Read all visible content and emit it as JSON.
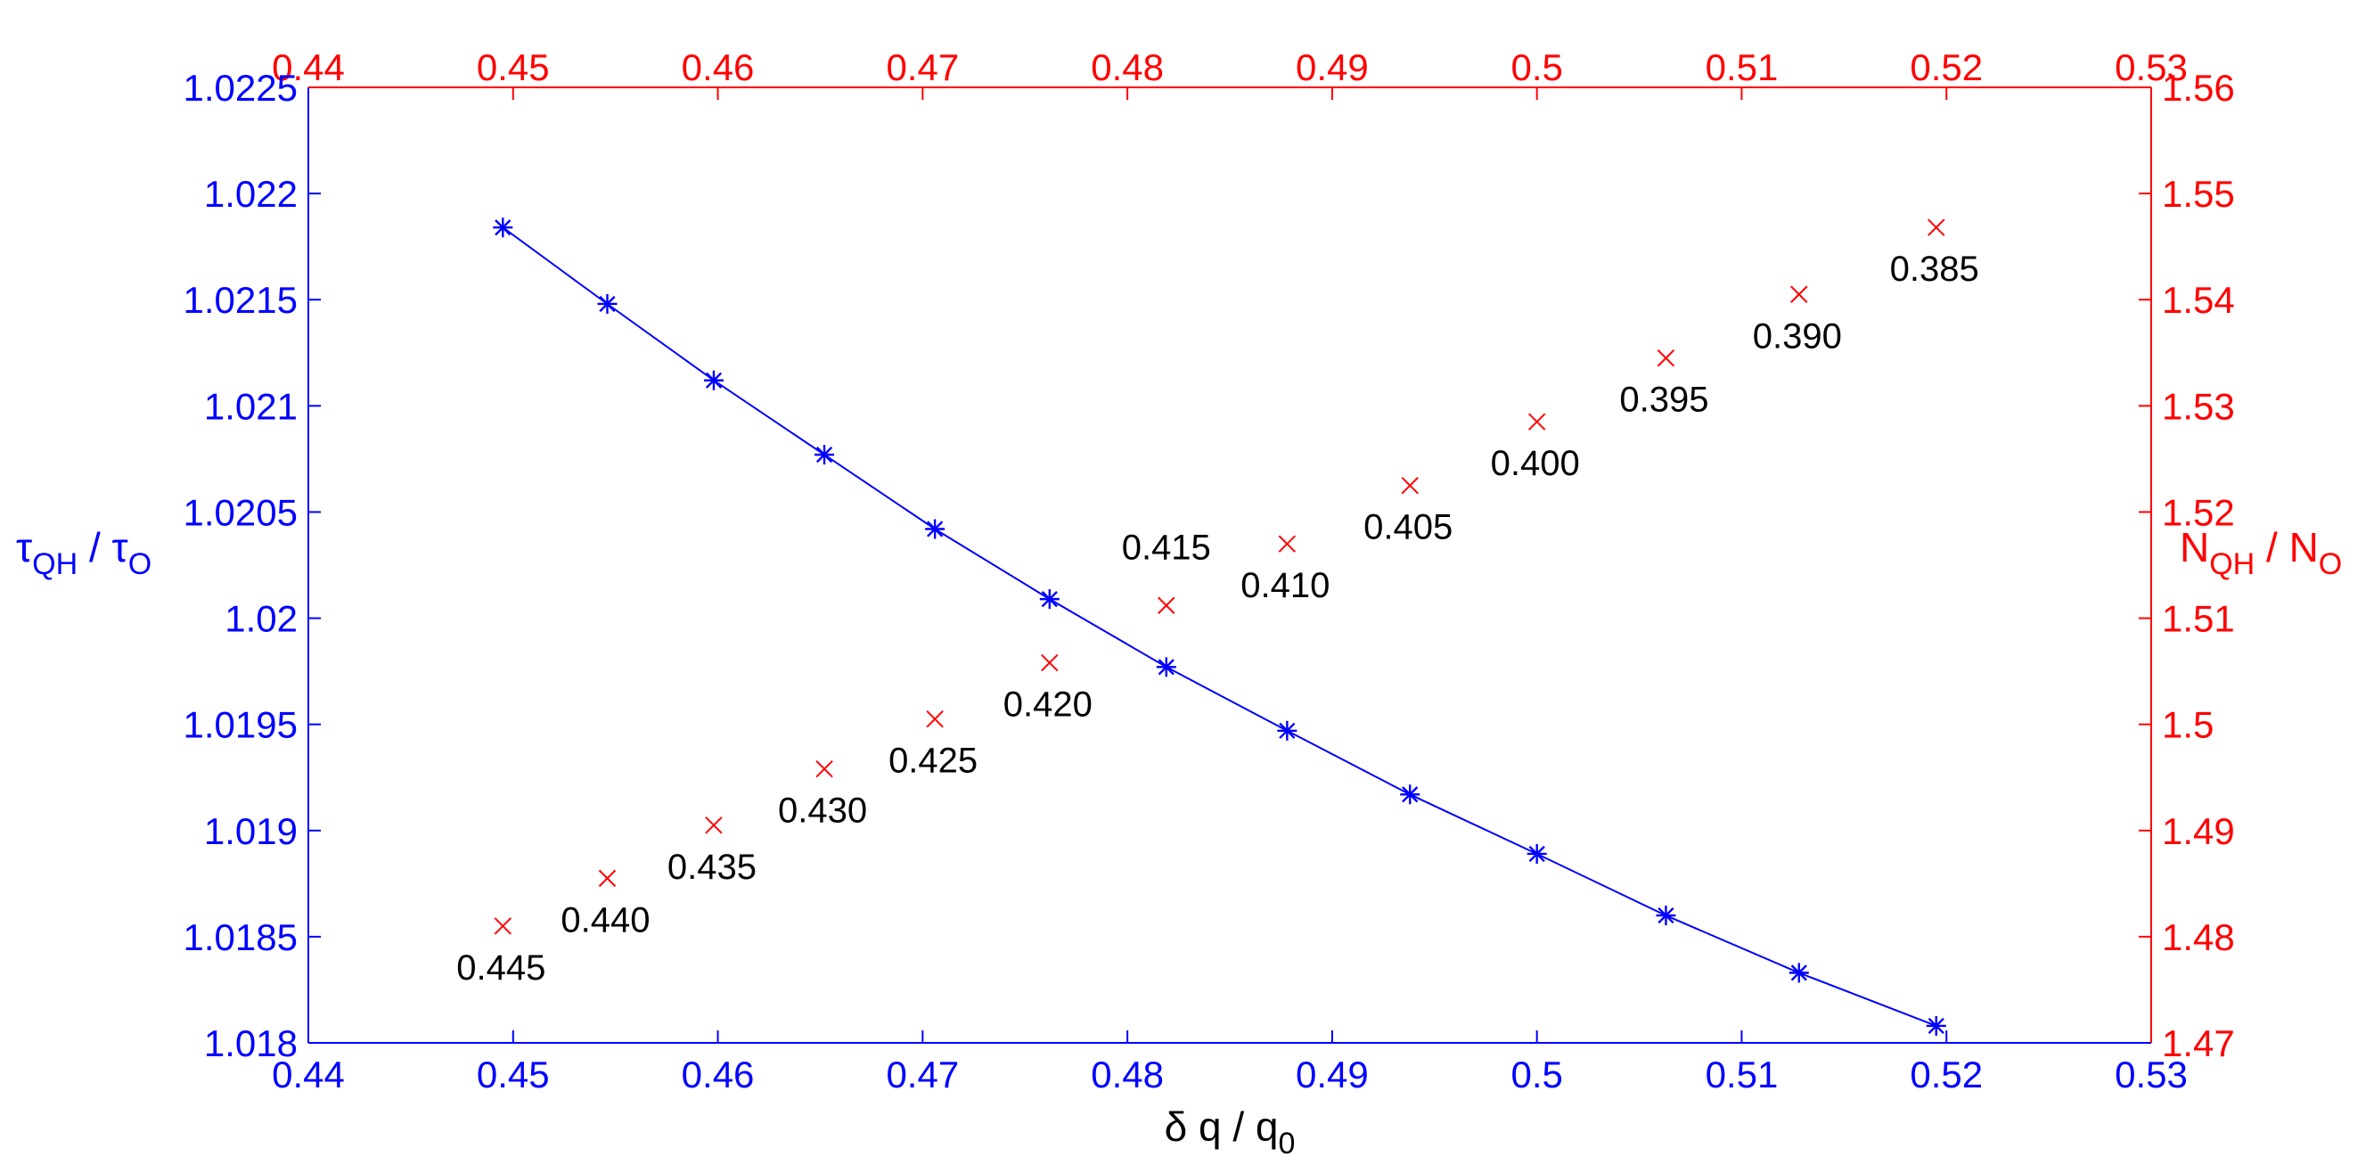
{
  "chart_data": {
    "type": "scatter",
    "colors": {
      "left": "#0000ff",
      "right": "#ff0000",
      "annotation": "#000000"
    },
    "x_axis": {
      "label": "δ q / q",
      "label_sub": "0",
      "range": [
        0.44,
        0.53
      ],
      "ticks": [
        "0.44",
        "0.45",
        "0.46",
        "0.47",
        "0.48",
        "0.49",
        "0.5",
        "0.51",
        "0.52",
        "0.53"
      ],
      "tick_values": [
        0.44,
        0.45,
        0.46,
        0.47,
        0.48,
        0.49,
        0.5,
        0.51,
        0.52,
        0.53
      ]
    },
    "top_axis": {
      "range": [
        0.44,
        0.53
      ],
      "ticks": [
        "0.44",
        "0.45",
        "0.46",
        "0.47",
        "0.48",
        "0.49",
        "0.5",
        "0.51",
        "0.52",
        "0.53"
      ],
      "tick_values": [
        0.44,
        0.45,
        0.46,
        0.47,
        0.48,
        0.49,
        0.5,
        0.51,
        0.52,
        0.53
      ]
    },
    "y_left": {
      "label_parts": [
        "τ",
        "QH",
        " / τ",
        "O"
      ],
      "range": [
        1.018,
        1.0225
      ],
      "ticks": [
        "1.018",
        "1.0185",
        "1.019",
        "1.0195",
        "1.02",
        "1.0205",
        "1.021",
        "1.0215",
        "1.022",
        "1.0225"
      ],
      "tick_values": [
        1.018,
        1.0185,
        1.019,
        1.0195,
        1.02,
        1.0205,
        1.021,
        1.0215,
        1.022,
        1.0225
      ]
    },
    "y_right": {
      "label_parts": [
        "N",
        "QH",
        " / N",
        "O"
      ],
      "range": [
        1.47,
        1.56
      ],
      "ticks": [
        "1.47",
        "1.48",
        "1.49",
        "1.5",
        "1.51",
        "1.52",
        "1.53",
        "1.54",
        "1.55",
        "1.56"
      ],
      "tick_values": [
        1.47,
        1.48,
        1.49,
        1.5,
        1.51,
        1.52,
        1.53,
        1.54,
        1.55,
        1.56
      ]
    },
    "series": [
      {
        "axis": "left",
        "marker": "asterisk",
        "line": true,
        "x": [
          0.4495,
          0.4546,
          0.4598,
          0.4652,
          0.4706,
          0.4762,
          0.4819,
          0.4878,
          0.4938,
          0.5,
          0.5063,
          0.5128,
          0.5195
        ],
        "y": [
          1.02184,
          1.02148,
          1.02112,
          1.02077,
          1.02042,
          1.02009,
          1.01977,
          1.01947,
          1.01917,
          1.01889,
          1.0186,
          1.01833,
          1.01808
        ]
      },
      {
        "axis": "right",
        "marker": "x",
        "line": false,
        "x": [
          0.4495,
          0.4546,
          0.4598,
          0.4652,
          0.4706,
          0.4762,
          0.4819,
          0.4878,
          0.4938,
          0.5,
          0.5063,
          0.5128,
          0.5195
        ],
        "y": [
          1.481,
          1.4855,
          1.4905,
          1.4958,
          1.5005,
          1.5058,
          1.5112,
          1.517,
          1.5225,
          1.5285,
          1.5345,
          1.5405,
          1.5468
        ]
      }
    ],
    "annotations": [
      "0.445",
      "0.440",
      "0.435",
      "0.430",
      "0.425",
      "0.420",
      "0.415",
      "0.410",
      "0.405",
      "0.400",
      "0.395",
      "0.390",
      "0.385"
    ]
  }
}
